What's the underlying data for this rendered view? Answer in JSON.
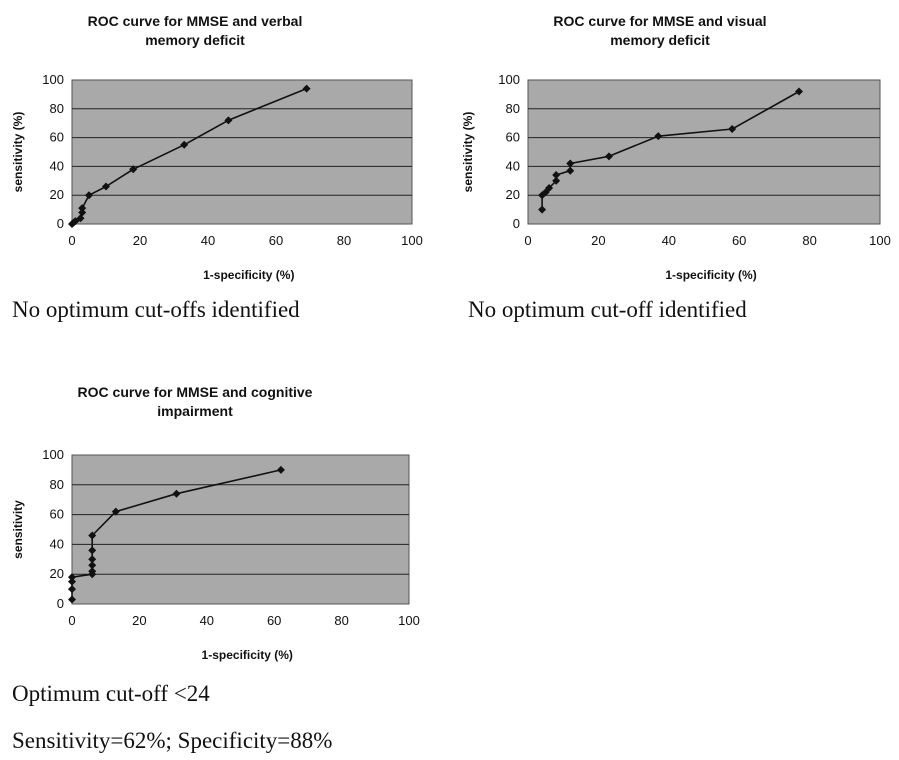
{
  "chart_data": [
    {
      "type": "line",
      "title": "ROC curve for MMSE and verbal\nmemory deficit",
      "xlabel": "1-specificity (%)",
      "ylabel": "sensitivity (%)",
      "xlim": [
        0,
        100
      ],
      "ylim": [
        0,
        100
      ],
      "xticks": [
        "0",
        "20",
        "40",
        "60",
        "80",
        "100"
      ],
      "yticks": [
        "0",
        "20",
        "40",
        "60",
        "80",
        "100"
      ],
      "grid": "horizontal",
      "plot_background": "#a9a9a9",
      "line_color": "#111111",
      "series": [
        {
          "x": [
            0,
            0.5,
            1,
            2.5,
            3,
            3,
            5,
            10,
            18,
            33,
            46,
            69
          ],
          "y": [
            0,
            1,
            2,
            4,
            8,
            11,
            20,
            26,
            38,
            55,
            72,
            94
          ]
        }
      ]
    },
    {
      "type": "line",
      "title": "ROC curve for MMSE and visual\nmemory deficit",
      "xlabel": "1-specificity (%)",
      "ylabel": "sensitivity (%)",
      "xlim": [
        0,
        100
      ],
      "ylim": [
        0,
        100
      ],
      "xticks": [
        "0",
        "20",
        "40",
        "60",
        "80",
        "100"
      ],
      "yticks": [
        "0",
        "20",
        "40",
        "60",
        "80",
        "100"
      ],
      "grid": "horizontal",
      "plot_background": "#a9a9a9",
      "line_color": "#111111",
      "series": [
        {
          "x": [
            4,
            4,
            5,
            6,
            8,
            8,
            12,
            12,
            23,
            37,
            58,
            77
          ],
          "y": [
            10,
            20,
            22,
            25,
            30,
            34,
            37,
            42,
            47,
            61,
            66,
            92
          ]
        }
      ]
    },
    {
      "type": "line",
      "title": "ROC curve for MMSE and cognitive\nimpairment",
      "xlabel": "1-specificity (%)",
      "ylabel": "sensitivity",
      "xlim": [
        0,
        100
      ],
      "ylim": [
        0,
        100
      ],
      "xticks": [
        "0",
        "20",
        "40",
        "60",
        "80",
        "100"
      ],
      "yticks": [
        "0",
        "20",
        "40",
        "60",
        "80",
        "100"
      ],
      "grid": "horizontal",
      "plot_background": "#a9a9a9",
      "line_color": "#111111",
      "series": [
        {
          "x": [
            0,
            0,
            0,
            0,
            6,
            6,
            6,
            6,
            6,
            6,
            13,
            31,
            62
          ],
          "y": [
            3,
            10,
            15,
            18,
            20,
            22,
            26,
            30,
            36,
            46,
            62,
            74,
            90
          ]
        }
      ]
    }
  ],
  "captions": {
    "chart1": "No optimum cut-offs identified",
    "chart2": "No optimum cut-off identified",
    "chart3_line1": "Optimum cut-off <24",
    "chart3_line2": "Sensitivity=62%; Specificity=88%"
  }
}
